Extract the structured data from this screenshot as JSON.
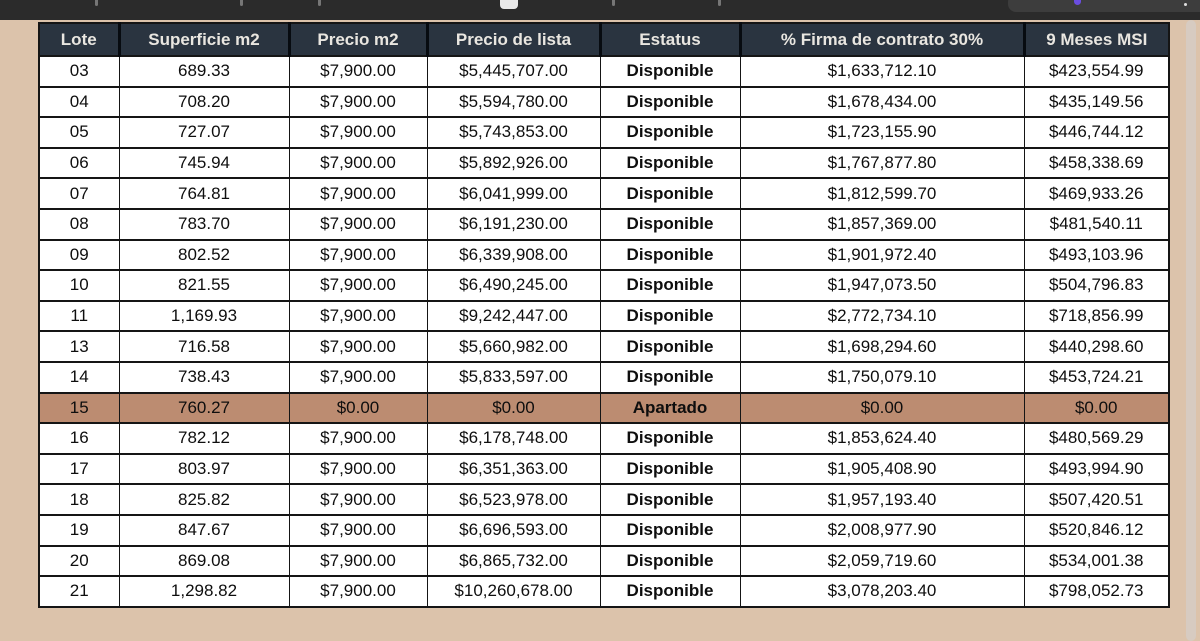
{
  "toolbar": {
    "note_fragments": [
      "partial-icons-cut-off"
    ]
  },
  "sheet": {
    "columns": [
      "Lote",
      "Superficie m2",
      "Precio m2",
      "Precio de lista",
      "Estatus",
      "% Firma de contrato 30%",
      "9 Meses MSI"
    ],
    "rows": [
      {
        "lote": "03",
        "superficie": "689.33",
        "precio_m2": "$7,900.00",
        "precio_lista": "$5,445,707.00",
        "estatus": "Disponible",
        "firma_30": "$1,633,712.10",
        "msi_9": "$423,554.99",
        "highlight": false
      },
      {
        "lote": "04",
        "superficie": "708.20",
        "precio_m2": "$7,900.00",
        "precio_lista": "$5,594,780.00",
        "estatus": "Disponible",
        "firma_30": "$1,678,434.00",
        "msi_9": "$435,149.56",
        "highlight": false
      },
      {
        "lote": "05",
        "superficie": "727.07",
        "precio_m2": "$7,900.00",
        "precio_lista": "$5,743,853.00",
        "estatus": "Disponible",
        "firma_30": "$1,723,155.90",
        "msi_9": "$446,744.12",
        "highlight": false
      },
      {
        "lote": "06",
        "superficie": "745.94",
        "precio_m2": "$7,900.00",
        "precio_lista": "$5,892,926.00",
        "estatus": "Disponible",
        "firma_30": "$1,767,877.80",
        "msi_9": "$458,338.69",
        "highlight": false
      },
      {
        "lote": "07",
        "superficie": "764.81",
        "precio_m2": "$7,900.00",
        "precio_lista": "$6,041,999.00",
        "estatus": "Disponible",
        "firma_30": "$1,812,599.70",
        "msi_9": "$469,933.26",
        "highlight": false
      },
      {
        "lote": "08",
        "superficie": "783.70",
        "precio_m2": "$7,900.00",
        "precio_lista": "$6,191,230.00",
        "estatus": "Disponible",
        "firma_30": "$1,857,369.00",
        "msi_9": "$481,540.11",
        "highlight": false
      },
      {
        "lote": "09",
        "superficie": "802.52",
        "precio_m2": "$7,900.00",
        "precio_lista": "$6,339,908.00",
        "estatus": "Disponible",
        "firma_30": "$1,901,972.40",
        "msi_9": "$493,103.96",
        "highlight": false
      },
      {
        "lote": "10",
        "superficie": "821.55",
        "precio_m2": "$7,900.00",
        "precio_lista": "$6,490,245.00",
        "estatus": "Disponible",
        "firma_30": "$1,947,073.50",
        "msi_9": "$504,796.83",
        "highlight": false
      },
      {
        "lote": "11",
        "superficie": "1,169.93",
        "precio_m2": "$7,900.00",
        "precio_lista": "$9,242,447.00",
        "estatus": "Disponible",
        "firma_30": "$2,772,734.10",
        "msi_9": "$718,856.99",
        "highlight": false
      },
      {
        "lote": "13",
        "superficie": "716.58",
        "precio_m2": "$7,900.00",
        "precio_lista": "$5,660,982.00",
        "estatus": "Disponible",
        "firma_30": "$1,698,294.60",
        "msi_9": "$440,298.60",
        "highlight": false
      },
      {
        "lote": "14",
        "superficie": "738.43",
        "precio_m2": "$7,900.00",
        "precio_lista": "$5,833,597.00",
        "estatus": "Disponible",
        "firma_30": "$1,750,079.10",
        "msi_9": "$453,724.21",
        "highlight": false
      },
      {
        "lote": "15",
        "superficie": "760.27",
        "precio_m2": "$0.00",
        "precio_lista": "$0.00",
        "estatus": "Apartado",
        "firma_30": "$0.00",
        "msi_9": "$0.00",
        "highlight": true
      },
      {
        "lote": "16",
        "superficie": "782.12",
        "precio_m2": "$7,900.00",
        "precio_lista": "$6,178,748.00",
        "estatus": "Disponible",
        "firma_30": "$1,853,624.40",
        "msi_9": "$480,569.29",
        "highlight": false
      },
      {
        "lote": "17",
        "superficie": "803.97",
        "precio_m2": "$7,900.00",
        "precio_lista": "$6,351,363.00",
        "estatus": "Disponible",
        "firma_30": "$1,905,408.90",
        "msi_9": "$493,994.90",
        "highlight": false
      },
      {
        "lote": "18",
        "superficie": "825.82",
        "precio_m2": "$7,900.00",
        "precio_lista": "$6,523,978.00",
        "estatus": "Disponible",
        "firma_30": "$1,957,193.40",
        "msi_9": "$507,420.51",
        "highlight": false
      },
      {
        "lote": "19",
        "superficie": "847.67",
        "precio_m2": "$7,900.00",
        "precio_lista": "$6,696,593.00",
        "estatus": "Disponible",
        "firma_30": "$2,008,977.90",
        "msi_9": "$520,846.12",
        "highlight": false
      },
      {
        "lote": "20",
        "superficie": "869.08",
        "precio_m2": "$7,900.00",
        "precio_lista": "$6,865,732.00",
        "estatus": "Disponible",
        "firma_30": "$2,059,719.60",
        "msi_9": "$534,001.38",
        "highlight": false
      },
      {
        "lote": "21",
        "superficie": "1,298.82",
        "precio_m2": "$7,900.00",
        "precio_lista": "$10,260,678.00",
        "estatus": "Disponible",
        "firma_30": "$3,078,203.40",
        "msi_9": "$798,052.73",
        "highlight": false
      }
    ]
  },
  "colors": {
    "topbar_bg": "#2b2b2b",
    "sheet_bg": "#dcc3ab",
    "header_bg": "#2a3440",
    "header_text": "#e9e6e0",
    "highlight_row": "#bc8c71",
    "purple_dot": "#6a4de0"
  }
}
